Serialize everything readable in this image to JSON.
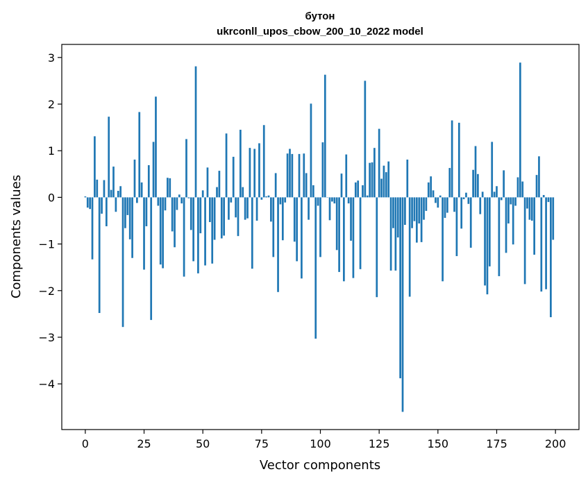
{
  "chart_data": {
    "type": "bar",
    "title_line1": "бутон",
    "title_line2": "ukrconll_upos_cbow_200_10_2022 model",
    "xlabel": "Vector components",
    "ylabel": "Components values",
    "x_ticks": [
      0,
      25,
      50,
      75,
      100,
      125,
      150,
      175,
      200
    ],
    "x_tick_labels": [
      "0",
      "25",
      "50",
      "75",
      "100",
      "125",
      "150",
      "175",
      "200"
    ],
    "y_ticks": [
      3,
      2,
      1,
      0,
      -1,
      -2,
      -3,
      -4
    ],
    "y_tick_labels": [
      "3",
      "2",
      "1",
      "0",
      "−1",
      "−2",
      "−3",
      "−4"
    ],
    "xlim": [
      -10,
      210
    ],
    "ylim": [
      -4.98,
      3.28
    ],
    "grid": false,
    "bar_color": "#1f77b4",
    "x": [
      0,
      1,
      2,
      3,
      4,
      5,
      6,
      7,
      8,
      9,
      10,
      11,
      12,
      13,
      14,
      15,
      16,
      17,
      18,
      19,
      20,
      21,
      22,
      23,
      24,
      25,
      26,
      27,
      28,
      29,
      30,
      31,
      32,
      33,
      34,
      35,
      36,
      37,
      38,
      39,
      40,
      41,
      42,
      43,
      44,
      45,
      46,
      47,
      48,
      49,
      50,
      51,
      52,
      53,
      54,
      55,
      56,
      57,
      58,
      59,
      60,
      61,
      62,
      63,
      64,
      65,
      66,
      67,
      68,
      69,
      70,
      71,
      72,
      73,
      74,
      75,
      76,
      77,
      78,
      79,
      80,
      81,
      82,
      83,
      84,
      85,
      86,
      87,
      88,
      89,
      90,
      91,
      92,
      93,
      94,
      95,
      96,
      97,
      98,
      99,
      100,
      101,
      102,
      103,
      104,
      105,
      106,
      107,
      108,
      109,
      110,
      111,
      112,
      113,
      114,
      115,
      116,
      117,
      118,
      119,
      120,
      121,
      122,
      123,
      124,
      125,
      126,
      127,
      128,
      129,
      130,
      131,
      132,
      133,
      134,
      135,
      136,
      137,
      138,
      139,
      140,
      141,
      142,
      143,
      144,
      145,
      146,
      147,
      148,
      149,
      150,
      151,
      152,
      153,
      154,
      155,
      156,
      157,
      158,
      159,
      160,
      161,
      162,
      163,
      164,
      165,
      166,
      167,
      168,
      169,
      170,
      171,
      172,
      173,
      174,
      175,
      176,
      177,
      178,
      179,
      180,
      181,
      182,
      183,
      184,
      185,
      186,
      187,
      188,
      189,
      190,
      191,
      192,
      193,
      194,
      195,
      196,
      197,
      198,
      199
    ],
    "values": [
      0.02,
      -0.22,
      -0.25,
      -1.33,
      1.31,
      0.38,
      -2.48,
      -0.35,
      0.37,
      -0.62,
      1.73,
      0.16,
      0.66,
      -0.31,
      0.14,
      0.24,
      -2.78,
      -0.66,
      -0.38,
      -0.9,
      -1.3,
      0.81,
      -0.12,
      1.83,
      0.32,
      -1.55,
      -0.62,
      0.69,
      -2.63,
      1.19,
      2.16,
      -0.18,
      -1.44,
      -1.52,
      -0.28,
      0.42,
      0.41,
      -0.73,
      -1.07,
      -0.27,
      0.06,
      -0.13,
      -1.7,
      1.25,
      -0.02,
      -0.7,
      -1.37,
      2.81,
      -1.63,
      -0.77,
      0.15,
      -1.46,
      0.64,
      -0.53,
      -1.42,
      -0.91,
      0.22,
      0.57,
      -0.88,
      -0.82,
      1.37,
      -0.48,
      -0.11,
      0.87,
      -0.43,
      -0.83,
      1.45,
      0.22,
      -0.48,
      -0.45,
      1.06,
      -1.53,
      1.04,
      -0.5,
      1.16,
      -0.05,
      1.55,
      0.02,
      0.04,
      -0.52,
      -1.28,
      0.52,
      -2.03,
      -0.15,
      -0.92,
      -0.11,
      0.94,
      1.04,
      0.93,
      -0.95,
      -1.37,
      0.93,
      -1.74,
      0.94,
      0.52,
      -0.48,
      2.01,
      0.26,
      -3.03,
      -0.18,
      -1.28,
      1.18,
      2.63,
      0.0,
      -0.49,
      -0.09,
      -0.13,
      -1.13,
      -1.6,
      0.51,
      -1.8,
      0.92,
      -0.13,
      -0.93,
      -1.73,
      0.32,
      0.36,
      -1.54,
      0.26,
      2.5,
      0.04,
      0.74,
      0.75,
      1.06,
      -2.14,
      1.47,
      0.4,
      0.68,
      0.54,
      0.77,
      -1.57,
      -0.66,
      -1.57,
      -0.86,
      -3.88,
      -4.6,
      -0.59,
      0.81,
      -2.13,
      -0.66,
      -0.51,
      -0.97,
      -0.56,
      -0.96,
      -0.48,
      -0.29,
      0.32,
      0.45,
      0.15,
      -0.12,
      -0.22,
      0.04,
      -1.8,
      -0.44,
      -0.33,
      0.63,
      1.65,
      -0.31,
      -1.26,
      1.6,
      -0.67,
      -0.04,
      0.1,
      -0.14,
      -1.08,
      0.59,
      1.1,
      0.5,
      -0.36,
      0.12,
      -1.89,
      -2.08,
      -1.48,
      1.19,
      0.12,
      0.24,
      -1.69,
      -0.06,
      0.58,
      -1.19,
      -0.56,
      -0.15,
      -1.01,
      -0.18,
      0.43,
      2.89,
      0.34,
      -1.86,
      -0.24,
      -0.48,
      -0.5,
      -1.23,
      0.48,
      0.88,
      -2.02,
      0.05,
      -1.97,
      -0.1,
      -2.57,
      -0.91
    ]
  }
}
